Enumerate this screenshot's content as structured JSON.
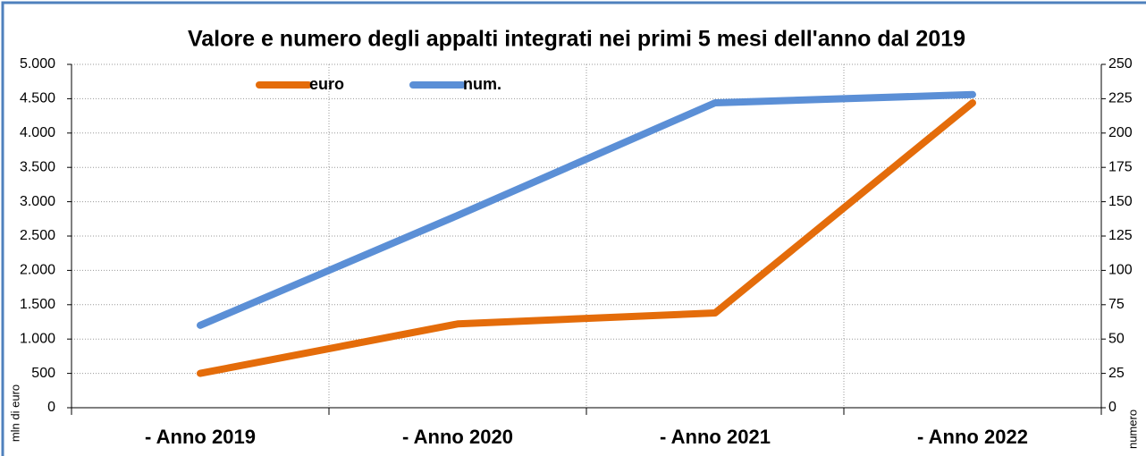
{
  "chart_data": {
    "type": "line",
    "title": "Valore e numero degli appalti integrati nei primi 5 mesi dell'anno dal 2019",
    "categories": [
      "- Anno 2019",
      "- Anno 2020",
      "- Anno 2021",
      "- Anno 2022"
    ],
    "series": [
      {
        "name": "euro",
        "color": "#e46c0a",
        "values": [
          500,
          1220,
          1380,
          4440
        ]
      },
      {
        "name": "num.",
        "color": "#5b8fd6",
        "values": [
          60,
          140,
          222,
          228
        ],
        "axis": "y2"
      }
    ],
    "ylabel": "mln di  euro",
    "y2label": "numero",
    "ylim": [
      0,
      5000
    ],
    "yticks": [
      {
        "value": 0,
        "label": "0"
      },
      {
        "value": 500,
        "label": "500"
      },
      {
        "value": 1000,
        "label": "1.000"
      },
      {
        "value": 1500,
        "label": "1.500"
      },
      {
        "value": 2000,
        "label": "2.000"
      },
      {
        "value": 2500,
        "label": "2.500"
      },
      {
        "value": 3000,
        "label": "3.000"
      },
      {
        "value": 3500,
        "label": "3.500"
      },
      {
        "value": 4000,
        "label": "4.000"
      },
      {
        "value": 4500,
        "label": "4.500"
      },
      {
        "value": 5000,
        "label": "5.000"
      }
    ],
    "y2lim": [
      0,
      250
    ],
    "y2ticks": [
      0,
      25,
      50,
      75,
      100,
      125,
      150,
      175,
      200,
      225,
      250
    ],
    "grid": true,
    "legend": "top"
  }
}
